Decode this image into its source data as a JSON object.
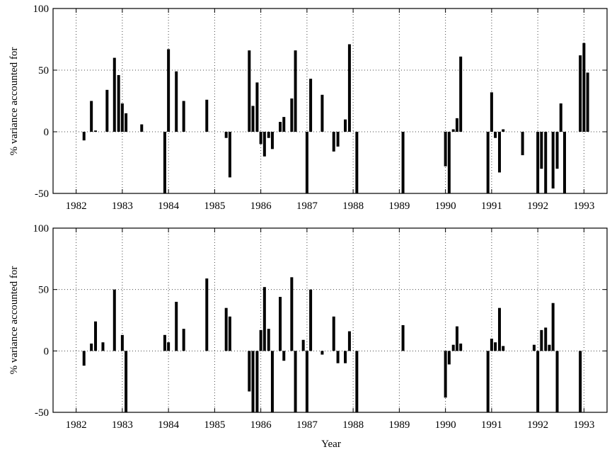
{
  "chart_data": [
    {
      "type": "bar",
      "ylabel": "% variance accounted for",
      "xlabel": "",
      "ylim": [
        -50,
        100
      ],
      "xlim": [
        1981.5,
        1993.5
      ],
      "yticks": [
        -50,
        0,
        50,
        100
      ],
      "xticks": [
        1982,
        1983,
        1984,
        1985,
        1986,
        1987,
        1988,
        1989,
        1990,
        1991,
        1992,
        1993
      ],
      "grid": true,
      "x": [
        1982.17,
        1982.33,
        1982.42,
        1982.67,
        1982.83,
        1982.92,
        1983.0,
        1983.08,
        1983.42,
        1983.92,
        1984.0,
        1984.17,
        1984.33,
        1984.83,
        1985.25,
        1985.33,
        1985.75,
        1985.83,
        1985.92,
        1986.0,
        1986.08,
        1986.17,
        1986.25,
        1986.42,
        1986.5,
        1986.67,
        1986.75,
        1987.0,
        1987.08,
        1987.33,
        1987.58,
        1987.67,
        1987.83,
        1987.92,
        1988.08,
        1989.08,
        1990.0,
        1990.08,
        1990.17,
        1990.25,
        1990.33,
        1990.92,
        1991.0,
        1991.08,
        1991.17,
        1991.25,
        1991.67,
        1992.0,
        1992.08,
        1992.17,
        1992.33,
        1992.42,
        1992.5,
        1992.58,
        1992.92,
        1993.0,
        1993.08
      ],
      "values": [
        -7,
        25,
        1,
        34,
        60,
        46,
        23,
        15,
        6,
        -50,
        67,
        49,
        25,
        26,
        -5,
        -37,
        66,
        21,
        40,
        -10,
        -20,
        -5,
        -14,
        8,
        12,
        27,
        66,
        -50,
        43,
        30,
        -16,
        -12,
        10,
        71,
        -50,
        -50,
        -28,
        -50,
        2,
        11,
        61,
        -50,
        32,
        -5,
        -33,
        2,
        -19,
        -50,
        -30,
        -50,
        -46,
        -30,
        23,
        -50,
        62,
        72,
        48
      ]
    },
    {
      "type": "bar",
      "ylabel": "% variance accounted for",
      "xlabel": "Year",
      "ylim": [
        -50,
        100
      ],
      "xlim": [
        1981.5,
        1993.5
      ],
      "yticks": [
        -50,
        0,
        50,
        100
      ],
      "xticks": [
        1982,
        1983,
        1984,
        1985,
        1986,
        1987,
        1988,
        1989,
        1990,
        1991,
        1992,
        1993
      ],
      "grid": true,
      "x": [
        1982.17,
        1982.33,
        1982.42,
        1982.58,
        1982.83,
        1983.0,
        1983.08,
        1983.92,
        1984.0,
        1984.17,
        1984.33,
        1984.83,
        1985.25,
        1985.33,
        1985.75,
        1985.83,
        1985.92,
        1986.0,
        1986.08,
        1986.17,
        1986.25,
        1986.42,
        1986.5,
        1986.67,
        1986.75,
        1986.92,
        1987.0,
        1987.08,
        1987.33,
        1987.58,
        1987.67,
        1987.83,
        1987.92,
        1988.08,
        1989.08,
        1990.0,
        1990.08,
        1990.17,
        1990.25,
        1990.33,
        1990.92,
        1991.0,
        1991.08,
        1991.17,
        1991.25,
        1991.92,
        1992.0,
        1992.08,
        1992.17,
        1992.25,
        1992.33,
        1992.42,
        1992.92
      ],
      "values": [
        -12,
        6,
        24,
        7,
        50,
        13,
        -50,
        13,
        7,
        40,
        18,
        59,
        35,
        28,
        -33,
        -50,
        -50,
        17,
        52,
        18,
        -50,
        44,
        -8,
        60,
        -50,
        9,
        -50,
        50,
        -3,
        28,
        -10,
        -10,
        16,
        -50,
        21,
        -38,
        -11,
        5,
        20,
        6,
        -50,
        10,
        7,
        35,
        4,
        5,
        -50,
        17,
        19,
        5,
        39,
        -50,
        -50
      ]
    }
  ]
}
